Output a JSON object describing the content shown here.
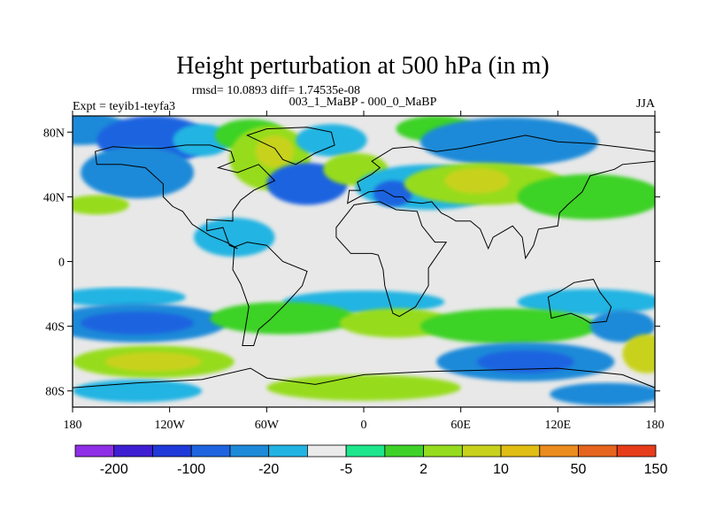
{
  "header": {
    "title": "Height perturbation at 500 hPa (in m)",
    "stats": "rmsd= 10.0893 diff= 1.74535e-08",
    "experiment": "Expt = teyib1-teyfa3",
    "comparison": "003_1_MaBP - 000_0_MaBP",
    "season": "JJA"
  },
  "map": {
    "projection": "cylindrical equidistant",
    "lon_range": [
      -180,
      180
    ],
    "lat_range": [
      -90,
      90
    ],
    "lon_ticks": [
      {
        "value": -180,
        "label": "180"
      },
      {
        "value": -120,
        "label": "120W"
      },
      {
        "value": -60,
        "label": "60W"
      },
      {
        "value": 0,
        "label": "0"
      },
      {
        "value": 60,
        "label": "60E"
      },
      {
        "value": 120,
        "label": "120E"
      },
      {
        "value": 180,
        "label": "180"
      }
    ],
    "lat_ticks": [
      {
        "value": 80,
        "label": "80N"
      },
      {
        "value": 40,
        "label": "40N"
      },
      {
        "value": 0,
        "label": "0"
      },
      {
        "value": -40,
        "label": "40S"
      },
      {
        "value": -80,
        "label": "80S"
      }
    ],
    "neutral_color": "#e8e8e8",
    "coastline_color": "#000000"
  },
  "colorbar": {
    "colors": [
      "#8e2ee6",
      "#3e1ed2",
      "#1f3ad8",
      "#1e64e0",
      "#1c8ad8",
      "#21b4e2",
      "#ebebeb",
      "#1ee68c",
      "#3ed228",
      "#96dc1e",
      "#c8d21c",
      "#e1be14",
      "#eb8c1e",
      "#e6641e",
      "#e63c1a"
    ],
    "labels": [
      {
        "after_box": 1,
        "text": "-200"
      },
      {
        "after_box": 3,
        "text": "-100"
      },
      {
        "after_box": 5,
        "text": "-20"
      },
      {
        "after_box": 7,
        "text": "-5"
      },
      {
        "after_box": 9,
        "text": "2"
      },
      {
        "after_box": 11,
        "text": "10"
      },
      {
        "after_box": 13,
        "text": "50"
      },
      {
        "after_box": 15,
        "text": "150"
      }
    ]
  },
  "fields": [
    {
      "lon": -175,
      "lat": 82,
      "rx": 30,
      "ry": 10,
      "color": "#1c8ad8"
    },
    {
      "lon": -130,
      "lat": 75,
      "rx": 35,
      "ry": 15,
      "color": "#1e64e0"
    },
    {
      "lon": -140,
      "lat": 55,
      "rx": 35,
      "ry": 16,
      "color": "#1c8ad8"
    },
    {
      "lon": -100,
      "lat": 75,
      "rx": 18,
      "ry": 10,
      "color": "#21b4e2"
    },
    {
      "lon": -70,
      "lat": 78,
      "rx": 22,
      "ry": 10,
      "color": "#3ed228"
    },
    {
      "lon": -58,
      "lat": 64,
      "rx": 25,
      "ry": 20,
      "color": "#96dc1e"
    },
    {
      "lon": -55,
      "lat": 68,
      "rx": 12,
      "ry": 10,
      "color": "#c8d21c"
    },
    {
      "lon": -20,
      "lat": 75,
      "rx": 22,
      "ry": 10,
      "color": "#21b4e2"
    },
    {
      "lon": -35,
      "lat": 48,
      "rx": 25,
      "ry": 13,
      "color": "#1e64e0"
    },
    {
      "lon": -5,
      "lat": 57,
      "rx": 20,
      "ry": 10,
      "color": "#96dc1e"
    },
    {
      "lon": 45,
      "lat": 82,
      "rx": 25,
      "ry": 8,
      "color": "#3ed228"
    },
    {
      "lon": 90,
      "lat": 74,
      "rx": 55,
      "ry": 15,
      "color": "#1c8ad8"
    },
    {
      "lon": 40,
      "lat": 46,
      "rx": 45,
      "ry": 14,
      "color": "#21b4e2"
    },
    {
      "lon": 18,
      "lat": 42,
      "rx": 12,
      "ry": 8,
      "color": "#1e64e0"
    },
    {
      "lon": 75,
      "lat": 48,
      "rx": 50,
      "ry": 13,
      "color": "#96dc1e"
    },
    {
      "lon": 70,
      "lat": 50,
      "rx": 20,
      "ry": 8,
      "color": "#c8d21c"
    },
    {
      "lon": 140,
      "lat": 40,
      "rx": 45,
      "ry": 14,
      "color": "#3ed228"
    },
    {
      "lon": -165,
      "lat": 35,
      "rx": 20,
      "ry": 6,
      "color": "#96dc1e"
    },
    {
      "lon": -80,
      "lat": 15,
      "rx": 25,
      "ry": 12,
      "color": "#21b4e2"
    },
    {
      "lon": -150,
      "lat": -22,
      "rx": 40,
      "ry": 6,
      "color": "#21b4e2"
    },
    {
      "lon": 0,
      "lat": -25,
      "rx": 50,
      "ry": 7,
      "color": "#21b4e2"
    },
    {
      "lon": 140,
      "lat": -25,
      "rx": 45,
      "ry": 8,
      "color": "#21b4e2"
    },
    {
      "lon": -140,
      "lat": -38,
      "rx": 55,
      "ry": 12,
      "color": "#1c8ad8"
    },
    {
      "lon": -140,
      "lat": -38,
      "rx": 35,
      "ry": 7,
      "color": "#1e64e0"
    },
    {
      "lon": -50,
      "lat": -35,
      "rx": 45,
      "ry": 10,
      "color": "#3ed228"
    },
    {
      "lon": 20,
      "lat": -38,
      "rx": 35,
      "ry": 9,
      "color": "#96dc1e"
    },
    {
      "lon": 90,
      "lat": -40,
      "rx": 55,
      "ry": 11,
      "color": "#3ed228"
    },
    {
      "lon": 160,
      "lat": -40,
      "rx": 20,
      "ry": 10,
      "color": "#1c8ad8"
    },
    {
      "lon": -130,
      "lat": -62,
      "rx": 50,
      "ry": 10,
      "color": "#96dc1e"
    },
    {
      "lon": -130,
      "lat": -62,
      "rx": 30,
      "ry": 6,
      "color": "#c8d21c"
    },
    {
      "lon": 100,
      "lat": -62,
      "rx": 55,
      "ry": 12,
      "color": "#1c8ad8"
    },
    {
      "lon": 100,
      "lat": -62,
      "rx": 30,
      "ry": 7,
      "color": "#1e64e0"
    },
    {
      "lon": 175,
      "lat": -57,
      "rx": 15,
      "ry": 12,
      "color": "#c8d21c"
    },
    {
      "lon": -140,
      "lat": -80,
      "rx": 40,
      "ry": 7,
      "color": "#21b4e2"
    },
    {
      "lon": 0,
      "lat": -78,
      "rx": 60,
      "ry": 8,
      "color": "#96dc1e"
    },
    {
      "lon": 150,
      "lat": -82,
      "rx": 35,
      "ry": 7,
      "color": "#1c8ad8"
    }
  ],
  "continents": [
    {
      "name": "north-america",
      "points": [
        [
          -166,
          68
        ],
        [
          -155,
          71
        ],
        [
          -140,
          70
        ],
        [
          -125,
          70
        ],
        [
          -110,
          72
        ],
        [
          -95,
          72
        ],
        [
          -82,
          68
        ],
        [
          -80,
          62
        ],
        [
          -90,
          58
        ],
        [
          -78,
          55
        ],
        [
          -65,
          60
        ],
        [
          -55,
          50
        ],
        [
          -68,
          44
        ],
        [
          -76,
          38
        ],
        [
          -81,
          31
        ],
        [
          -81,
          25
        ],
        [
          -97,
          26
        ],
        [
          -97,
          19
        ],
        [
          -87,
          21
        ],
        [
          -83,
          10
        ],
        [
          -78,
          8
        ],
        [
          -85,
          12
        ],
        [
          -95,
          16
        ],
        [
          -106,
          23
        ],
        [
          -112,
          31
        ],
        [
          -118,
          34
        ],
        [
          -124,
          40
        ],
        [
          -124,
          48
        ],
        [
          -135,
          58
        ],
        [
          -150,
          60
        ],
        [
          -165,
          60
        ],
        [
          -166,
          68
        ]
      ]
    },
    {
      "name": "greenland",
      "points": [
        [
          -72,
          78
        ],
        [
          -60,
          82
        ],
        [
          -35,
          83
        ],
        [
          -20,
          80
        ],
        [
          -18,
          72
        ],
        [
          -30,
          67
        ],
        [
          -42,
          60
        ],
        [
          -50,
          63
        ],
        [
          -55,
          70
        ],
        [
          -72,
          78
        ]
      ]
    },
    {
      "name": "south-america",
      "points": [
        [
          -80,
          9
        ],
        [
          -72,
          12
        ],
        [
          -60,
          10
        ],
        [
          -50,
          0
        ],
        [
          -35,
          -6
        ],
        [
          -38,
          -15
        ],
        [
          -48,
          -26
        ],
        [
          -58,
          -36
        ],
        [
          -65,
          -42
        ],
        [
          -68,
          -52
        ],
        [
          -75,
          -52
        ],
        [
          -73,
          -40
        ],
        [
          -71,
          -28
        ],
        [
          -76,
          -14
        ],
        [
          -81,
          -5
        ],
        [
          -80,
          9
        ]
      ]
    },
    {
      "name": "eurasia",
      "points": [
        [
          -10,
          36
        ],
        [
          -9,
          44
        ],
        [
          -2,
          44
        ],
        [
          -4,
          49
        ],
        [
          5,
          54
        ],
        [
          10,
          58
        ],
        [
          5,
          62
        ],
        [
          18,
          70
        ],
        [
          30,
          71
        ],
        [
          45,
          68
        ],
        [
          60,
          70
        ],
        [
          75,
          73
        ],
        [
          100,
          78
        ],
        [
          120,
          74
        ],
        [
          140,
          73
        ],
        [
          165,
          70
        ],
        [
          180,
          68
        ],
        [
          180,
          62
        ],
        [
          160,
          60
        ],
        [
          155,
          57
        ],
        [
          140,
          53
        ],
        [
          135,
          43
        ],
        [
          126,
          35
        ],
        [
          121,
          30
        ],
        [
          120,
          22
        ],
        [
          108,
          20
        ],
        [
          105,
          10
        ],
        [
          100,
          2
        ],
        [
          98,
          15
        ],
        [
          92,
          22
        ],
        [
          80,
          15
        ],
        [
          77,
          8
        ],
        [
          72,
          20
        ],
        [
          66,
          25
        ],
        [
          57,
          25
        ],
        [
          52,
          28
        ],
        [
          48,
          30
        ],
        [
          42,
          37
        ],
        [
          36,
          36
        ],
        [
          27,
          37
        ],
        [
          24,
          40
        ],
        [
          19,
          40
        ],
        [
          12,
          44
        ],
        [
          3,
          43
        ],
        [
          -10,
          36
        ]
      ]
    },
    {
      "name": "africa",
      "points": [
        [
          -17,
          21
        ],
        [
          -17,
          15
        ],
        [
          -8,
          5
        ],
        [
          5,
          5
        ],
        [
          9,
          4
        ],
        [
          12,
          -5
        ],
        [
          13,
          -15
        ],
        [
          18,
          -32
        ],
        [
          22,
          -34
        ],
        [
          32,
          -28
        ],
        [
          40,
          -15
        ],
        [
          40,
          -4
        ],
        [
          51,
          12
        ],
        [
          44,
          12
        ],
        [
          36,
          22
        ],
        [
          33,
          31
        ],
        [
          20,
          32
        ],
        [
          10,
          37
        ],
        [
          0,
          36
        ],
        [
          -6,
          35
        ],
        [
          -17,
          21
        ]
      ]
    },
    {
      "name": "australia",
      "points": [
        [
          114,
          -22
        ],
        [
          122,
          -18
        ],
        [
          130,
          -13
        ],
        [
          136,
          -12
        ],
        [
          142,
          -11
        ],
        [
          146,
          -19
        ],
        [
          153,
          -28
        ],
        [
          150,
          -37
        ],
        [
          140,
          -38
        ],
        [
          135,
          -35
        ],
        [
          128,
          -32
        ],
        [
          116,
          -35
        ],
        [
          114,
          -22
        ]
      ]
    },
    {
      "name": "antarctica",
      "points": [
        [
          -180,
          -78
        ],
        [
          -140,
          -75
        ],
        [
          -100,
          -73
        ],
        [
          -70,
          -66
        ],
        [
          -60,
          -72
        ],
        [
          -30,
          -76
        ],
        [
          0,
          -70
        ],
        [
          40,
          -68
        ],
        [
          80,
          -67
        ],
        [
          120,
          -66
        ],
        [
          160,
          -70
        ],
        [
          180,
          -78
        ]
      ]
    }
  ]
}
